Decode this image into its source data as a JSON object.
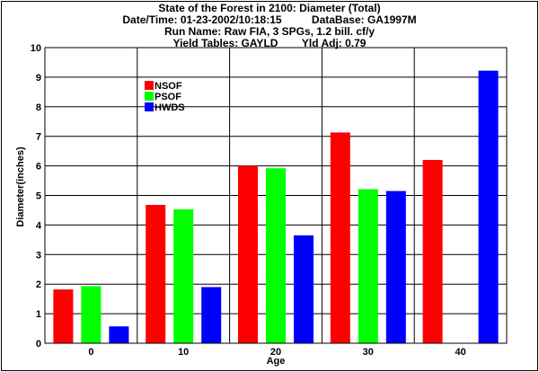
{
  "chart_data": {
    "type": "bar",
    "title_lines": [
      "State of the Forest in 2100: Diameter (Total)",
      "Date/Time: 01-23-2002/10:18:15          DataBase: GA1997M",
      "Run Name: Raw FIA, 3 SPGs, 1.2 bill. cf/y",
      "Yield Tables: GAYLD        Yld Adj: 0.79"
    ],
    "xlabel": "Age",
    "ylabel": "Diameter(inches)",
    "categories": [
      "0",
      "10",
      "20",
      "30",
      "40"
    ],
    "ylim": [
      0,
      10
    ],
    "yticks": [
      0,
      1,
      2,
      3,
      4,
      5,
      6,
      7,
      8,
      9,
      10
    ],
    "grid": true,
    "legend_position": "top-left",
    "series": [
      {
        "name": "NSOF",
        "color": "#ff0000",
        "values": [
          1.82,
          4.68,
          6.0,
          7.13,
          6.2
        ]
      },
      {
        "name": "PSOF",
        "color": "#00ff00",
        "values": [
          1.93,
          4.53,
          5.92,
          5.21,
          0
        ]
      },
      {
        "name": "HWDS",
        "color": "#0000ff",
        "values": [
          0.57,
          1.9,
          3.65,
          5.15,
          9.22
        ]
      }
    ]
  }
}
